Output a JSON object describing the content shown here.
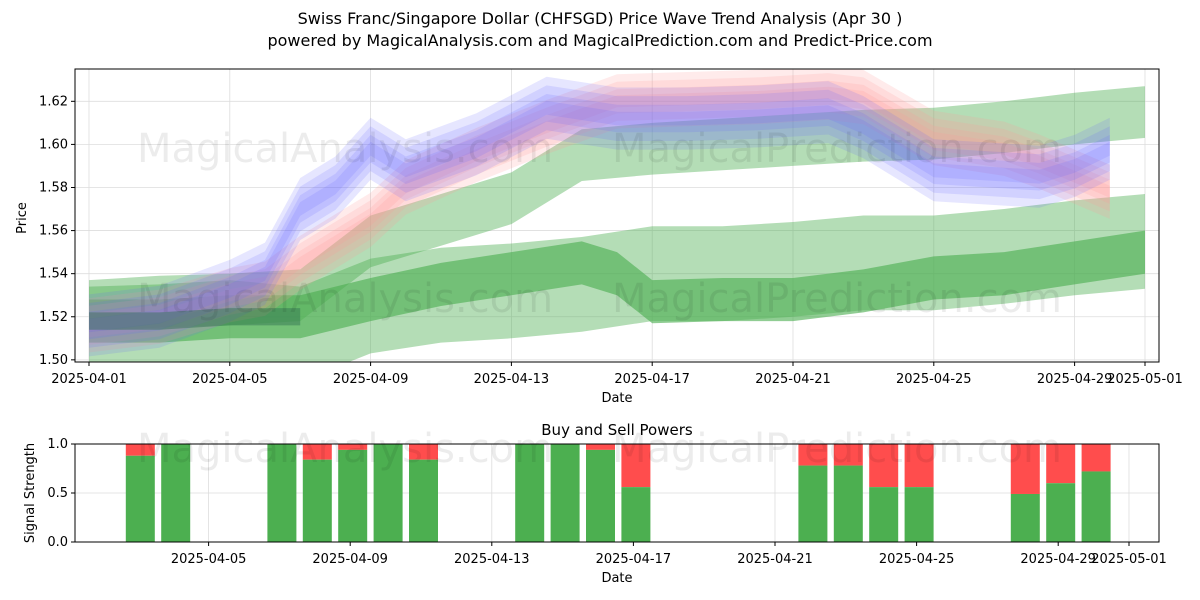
{
  "title": "Swiss Franc/Singapore Dollar (CHFSGD) Price Wave Trend Analysis (Apr 30 )",
  "subtitle": "powered by MagicalAnalysis.com and MagicalPrediction.com and Predict-Price.com",
  "watermarks": [
    "MagicalAnalysis.com",
    "MagicalPrediction.com"
  ],
  "colors": {
    "green": "#4caf50",
    "red": "#ff4d4d",
    "blue": "#6666ff",
    "pink": "#ff9999",
    "darkgreen": "#2f6f4f"
  },
  "chart_data": [
    {
      "type": "area",
      "name": "price-wave",
      "xlabel": "Date",
      "ylabel": "Price",
      "x_ticks": [
        "2025-04-01",
        "2025-04-05",
        "2025-04-09",
        "2025-04-13",
        "2025-04-17",
        "2025-04-21",
        "2025-04-25",
        "2025-04-29",
        "2025-05-01"
      ],
      "y_ticks": [
        "1.50",
        "1.52",
        "1.54",
        "1.56",
        "1.58",
        "1.60",
        "1.62"
      ],
      "xlim": [
        "2025-03-31",
        "2025-05-02"
      ],
      "ylim": [
        1.499,
        1.635
      ],
      "grid": true,
      "series": [
        {
          "band": "blue",
          "points": [
            [
              1,
              1.516
            ],
            [
              3,
              1.52
            ],
            [
              5,
              1.532
            ],
            [
              6,
              1.54
            ],
            [
              7,
              1.57
            ],
            [
              8,
              1.58
            ],
            [
              9,
              1.598
            ],
            [
              10,
              1.588
            ],
            [
              12,
              1.6
            ],
            [
              14,
              1.617
            ],
            [
              16,
              1.612
            ],
            [
              18,
              1.612
            ],
            [
              20,
              1.613
            ],
            [
              22,
              1.615
            ],
            [
              23,
              1.608
            ],
            [
              25,
              1.588
            ],
            [
              27,
              1.586
            ],
            [
              28,
              1.585
            ],
            [
              29,
              1.59
            ],
            [
              30,
              1.598
            ]
          ],
          "halfwidth": 0.008
        },
        {
          "band": "pink",
          "points": [
            [
              1,
              1.516
            ],
            [
              3,
              1.52
            ],
            [
              5,
              1.53
            ],
            [
              6,
              1.533
            ],
            [
              7,
              1.545
            ],
            [
              9,
              1.565
            ],
            [
              10,
              1.58
            ],
            [
              12,
              1.595
            ],
            [
              14,
              1.608
            ],
            [
              16,
              1.62
            ],
            [
              18,
              1.621
            ],
            [
              20,
              1.622
            ],
            [
              22,
              1.624
            ],
            [
              23,
              1.622
            ],
            [
              25,
              1.603
            ],
            [
              27,
              1.598
            ],
            [
              28,
              1.592
            ],
            [
              29,
              1.585
            ],
            [
              30,
              1.578
            ]
          ],
          "halfwidth": 0.007
        },
        {
          "band": "green-upper",
          "points": [
            [
              1,
              1.525
            ],
            [
              3,
              1.527
            ],
            [
              5,
              1.528
            ],
            [
              7,
              1.53
            ],
            [
              9,
              1.555
            ],
            [
              11,
              1.565
            ],
            [
              13,
              1.575
            ],
            [
              15,
              1.595
            ],
            [
              17,
              1.598
            ],
            [
              19,
              1.6
            ],
            [
              21,
              1.602
            ],
            [
              23,
              1.604
            ],
            [
              25,
              1.605
            ],
            [
              27,
              1.608
            ],
            [
              29,
              1.612
            ],
            [
              31,
              1.615
            ]
          ],
          "halfwidth": 0.012
        },
        {
          "band": "green-mid",
          "points": [
            [
              1,
              1.518
            ],
            [
              3,
              1.518
            ],
            [
              5,
              1.52
            ],
            [
              7,
              1.52
            ],
            [
              9,
              1.528
            ],
            [
              11,
              1.535
            ],
            [
              13,
              1.54
            ],
            [
              15,
              1.545
            ],
            [
              16,
              1.54
            ],
            [
              17,
              1.527
            ],
            [
              19,
              1.528
            ],
            [
              21,
              1.528
            ],
            [
              23,
              1.532
            ],
            [
              25,
              1.538
            ],
            [
              27,
              1.54
            ],
            [
              29,
              1.545
            ],
            [
              31,
              1.55
            ]
          ],
          "halfwidth": 0.01
        },
        {
          "band": "green-lower",
          "points": [
            [
              1,
              1.512
            ],
            [
              3,
              1.513
            ],
            [
              5,
              1.515
            ],
            [
              7,
              1.512
            ],
            [
              9,
              1.525
            ],
            [
              11,
              1.53
            ],
            [
              13,
              1.532
            ],
            [
              15,
              1.535
            ],
            [
              17,
              1.54
            ],
            [
              19,
              1.54
            ],
            [
              21,
              1.542
            ],
            [
              23,
              1.545
            ],
            [
              25,
              1.545
            ],
            [
              27,
              1.548
            ],
            [
              29,
              1.552
            ],
            [
              31,
              1.555
            ]
          ],
          "halfwidth": 0.022
        }
      ]
    },
    {
      "type": "bar",
      "name": "buy-sell-powers",
      "title": "Buy and Sell Powers",
      "xlabel": "Date",
      "ylabel": "Signal Strength",
      "x_ticks": [
        "2025-04-05",
        "2025-04-09",
        "2025-04-13",
        "2025-04-17",
        "2025-04-21",
        "2025-04-25",
        "2025-04-29",
        "2025-05-01"
      ],
      "y_ticks": [
        "0.0",
        "0.5",
        "1.0"
      ],
      "ylim": [
        0,
        1
      ],
      "grid": true,
      "bars": [
        {
          "day": 2,
          "buy": 0.88
        },
        {
          "day": 3,
          "buy": 1.0
        },
        {
          "day": 6,
          "buy": 1.0
        },
        {
          "day": 7,
          "buy": 0.84
        },
        {
          "day": 8,
          "buy": 0.94
        },
        {
          "day": 9,
          "buy": 1.0
        },
        {
          "day": 10,
          "buy": 0.84
        },
        {
          "day": 13,
          "buy": 1.0
        },
        {
          "day": 14,
          "buy": 1.0
        },
        {
          "day": 15,
          "buy": 0.94
        },
        {
          "day": 16,
          "buy": 0.56
        },
        {
          "day": 21,
          "buy": 0.78
        },
        {
          "day": 22,
          "buy": 0.78
        },
        {
          "day": 23,
          "buy": 0.56
        },
        {
          "day": 24,
          "buy": 0.56
        },
        {
          "day": 27,
          "buy": 0.49
        },
        {
          "day": 28,
          "buy": 0.6
        },
        {
          "day": 29,
          "buy": 0.72
        }
      ]
    }
  ]
}
